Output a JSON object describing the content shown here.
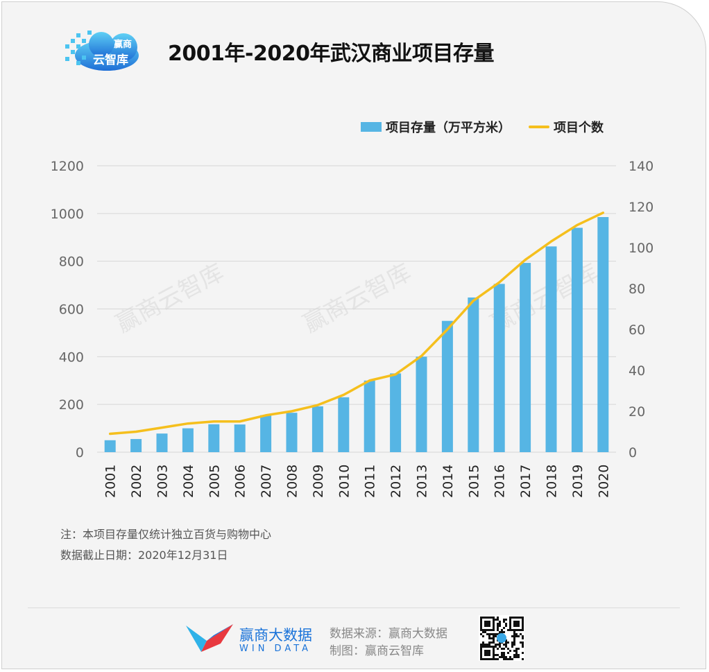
{
  "header": {
    "logo_icon": "cloud-logo-icon",
    "logo_line1": "赢商",
    "logo_line2": "云智库",
    "title": "2001年-2020年武汉商业项目存量"
  },
  "legend": {
    "bar_label": "项目存量（万平方米）",
    "line_label": "项目个数"
  },
  "watermark": "赢商云智库",
  "colors": {
    "bar": "#56b5e4",
    "line": "#f5bf1d",
    "grid": "#d6d6d6",
    "accent": "#1a73d9"
  },
  "chart_data": {
    "type": "bar",
    "categories": [
      "2001",
      "2002",
      "2003",
      "2004",
      "2005",
      "2006",
      "2007",
      "2008",
      "2009",
      "2010",
      "2011",
      "2012",
      "2013",
      "2014",
      "2015",
      "2016",
      "2017",
      "2018",
      "2019",
      "2020"
    ],
    "series": [
      {
        "name": "项目存量（万平方米）",
        "type": "bar",
        "axis": "left",
        "values": [
          50,
          55,
          78,
          100,
          117,
          116,
          155,
          165,
          192,
          230,
          300,
          330,
          400,
          550,
          648,
          705,
          793,
          862,
          940,
          985
        ]
      },
      {
        "name": "项目个数",
        "type": "line",
        "axis": "right",
        "values": [
          9,
          10,
          12,
          14,
          15,
          15,
          18,
          20,
          23,
          28,
          35,
          38,
          47,
          60,
          74,
          83,
          94,
          103,
          111,
          117
        ]
      }
    ],
    "y_left": {
      "range": [
        0,
        1200
      ],
      "ticks": [
        "0",
        "200",
        "400",
        "600",
        "800",
        "1000",
        "1200"
      ]
    },
    "y_right": {
      "range": [
        0,
        140
      ],
      "ticks": [
        "0",
        "20",
        "40",
        "60",
        "80",
        "100",
        "120",
        "140"
      ]
    },
    "grid": true,
    "legend_position": "top-right"
  },
  "notes": {
    "line1": "注：本项目存量仅统计独立百货与购物中心",
    "line2": "数据截止日期：2020年12月31日"
  },
  "footer": {
    "brand_icon": "win-data-logo-icon",
    "brand_cn": "赢商大数据",
    "brand_en": "WIN DATA",
    "source": "数据来源：赢商大数据",
    "made_by": "制图：赢商云智库",
    "qr_icon": "qr-code-icon"
  }
}
